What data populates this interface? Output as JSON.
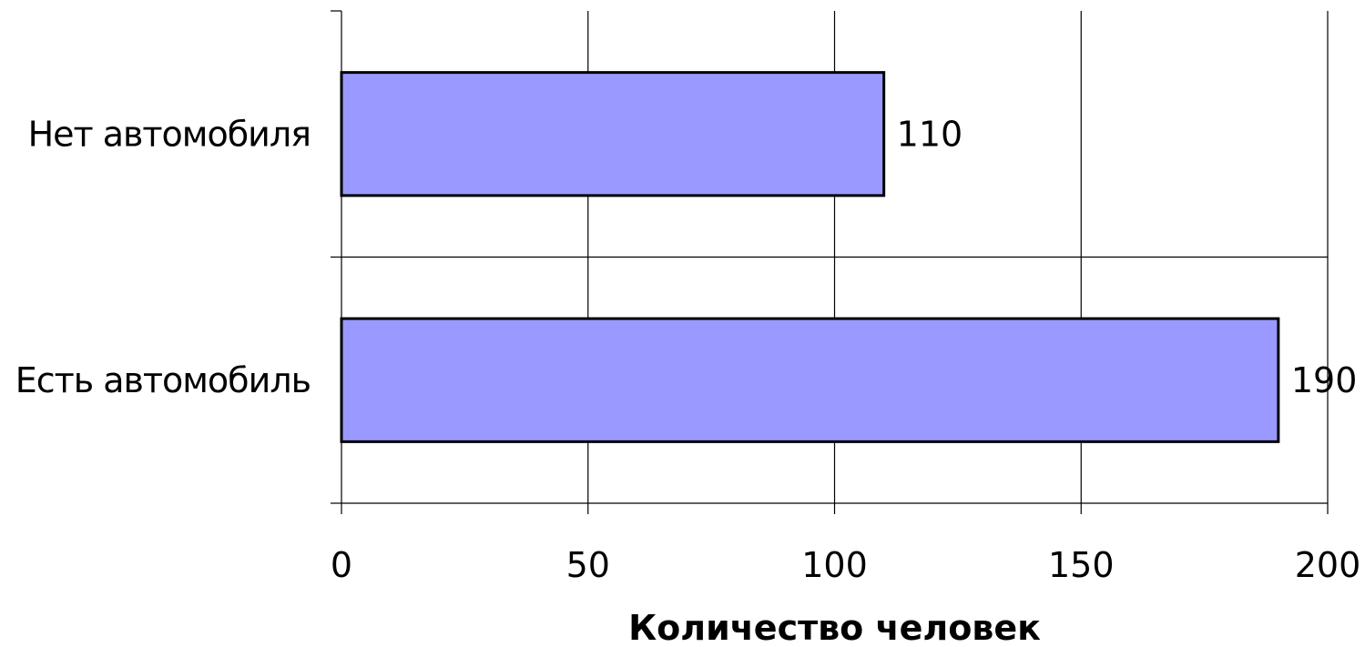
{
  "chart_data": {
    "type": "bar",
    "orientation": "horizontal",
    "categories": [
      "Нет автомобиля",
      "Есть автомобиль"
    ],
    "values": [
      110,
      190
    ],
    "data_labels": [
      "110",
      "190"
    ],
    "title": "",
    "xlabel": "Количество человек",
    "ylabel": "",
    "xlim": [
      0,
      200
    ],
    "x_ticks": [
      0,
      50,
      100,
      150,
      200
    ],
    "x_tick_labels": [
      "0",
      "50",
      "100",
      "150",
      "200"
    ],
    "grid": true,
    "legend": "none",
    "bar_color": "#9999ff",
    "bar_edge_color": "#000000"
  }
}
